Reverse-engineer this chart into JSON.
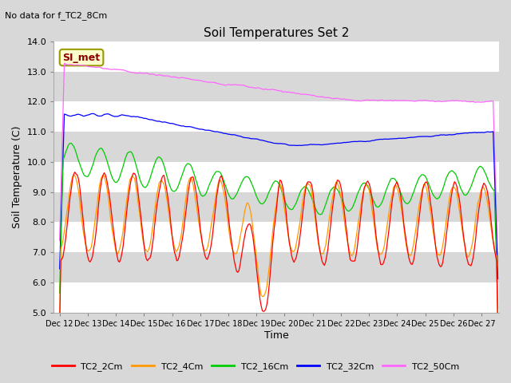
{
  "title": "Soil Temperatures Set 2",
  "subtitle": "No data for f_TC2_8Cm",
  "xlabel": "Time",
  "ylabel": "Soil Temperature (C)",
  "ylim": [
    5.0,
    14.0
  ],
  "yticks": [
    5.0,
    6.0,
    7.0,
    8.0,
    9.0,
    10.0,
    11.0,
    12.0,
    13.0,
    14.0
  ],
  "bg_color": "#d8d8d8",
  "plot_bg": "#d8d8d8",
  "grid_color": "#ffffff",
  "legend_labels": [
    "TC2_2Cm",
    "TC2_4Cm",
    "TC2_16Cm",
    "TC2_32Cm",
    "TC2_50Cm"
  ],
  "line_colors": [
    "#ff0000",
    "#ff9900",
    "#00cc00",
    "#0000ff",
    "#ff66ff"
  ],
  "annotation_text": "SI_met",
  "annotation_bg": "#ffffcc",
  "annotation_border": "#999900",
  "x_tick_labels": [
    "Dec 12",
    "Dec 13",
    "Dec 14",
    "Dec 15",
    "Dec 16",
    "Dec 17",
    "Dec 18",
    "Dec 19",
    "Dec 20",
    "Dec 21",
    "Dec 22",
    "Dec 23",
    "Dec 24",
    "Dec 25",
    "Dec 26",
    "Dec 27"
  ],
  "x_tick_positions": [
    0,
    24,
    48,
    72,
    96,
    120,
    144,
    168,
    192,
    216,
    240,
    264,
    288,
    312,
    336,
    360
  ],
  "n_points": 375,
  "days": 15
}
